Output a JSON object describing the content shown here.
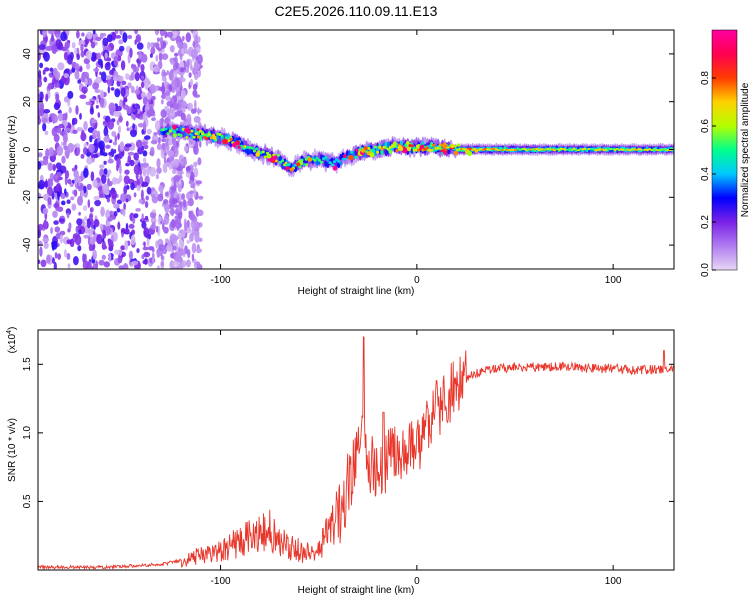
{
  "chart_data": [
    {
      "type": "heatmap",
      "title": "C2E5.2026.110.09.11.E13",
      "xlabel": "Height of straight line (km)",
      "ylabel": "Frequency (Hz)",
      "xlim": [
        -193,
        131
      ],
      "ylim": [
        -50,
        50
      ],
      "xticks": [
        -100,
        0,
        100
      ],
      "yticks": [
        -40,
        -20,
        0,
        20,
        40
      ],
      "colorbar": {
        "label": "Normalized spectral amplitude",
        "range": [
          0,
          1
        ],
        "ticks": [
          "0.0",
          "0.2",
          "0.4",
          "0.6",
          "0.8"
        ],
        "ticks_values": [
          0.0,
          0.2,
          0.4,
          0.6,
          0.8
        ],
        "colors": [
          "#e6d7f5",
          "#b07cf0",
          "#7a22e6",
          "#0000ff",
          "#00c8ff",
          "#00ff8c",
          "#b4ff00",
          "#ffd200",
          "#ff3c00",
          "#ff0050",
          "#ff00a0"
        ]
      },
      "ridge": [
        {
          "x": -130,
          "y": 8,
          "a": 0.45
        },
        {
          "x": -118,
          "y": 7,
          "a": 0.6
        },
        {
          "x": -108,
          "y": 6,
          "a": 0.75
        },
        {
          "x": -100,
          "y": 5,
          "a": 0.55
        },
        {
          "x": -92,
          "y": 3,
          "a": 0.5
        },
        {
          "x": -85,
          "y": 0,
          "a": 0.45
        },
        {
          "x": -78,
          "y": -2,
          "a": 0.55
        },
        {
          "x": -70,
          "y": -4,
          "a": 0.6
        },
        {
          "x": -64,
          "y": -8,
          "a": 0.5
        },
        {
          "x": -58,
          "y": -5,
          "a": 0.45
        },
        {
          "x": -50,
          "y": -4,
          "a": 0.5
        },
        {
          "x": -42,
          "y": -6,
          "a": 0.4
        },
        {
          "x": -35,
          "y": -3,
          "a": 0.45
        },
        {
          "x": -28,
          "y": -1,
          "a": 0.5
        },
        {
          "x": -20,
          "y": 0,
          "a": 0.6
        },
        {
          "x": -12,
          "y": 1,
          "a": 0.7
        },
        {
          "x": -5,
          "y": 1,
          "a": 0.8
        },
        {
          "x": 5,
          "y": 1,
          "a": 0.75
        },
        {
          "x": 20,
          "y": 0,
          "a": 0.7
        },
        {
          "x": 40,
          "y": 0,
          "a": 0.65
        },
        {
          "x": 60,
          "y": 0,
          "a": 0.62
        },
        {
          "x": 80,
          "y": 0,
          "a": 0.6
        },
        {
          "x": 100,
          "y": 0,
          "a": 0.6
        },
        {
          "x": 120,
          "y": 0,
          "a": 0.6
        },
        {
          "x": 131,
          "y": 0,
          "a": 0.6
        }
      ]
    },
    {
      "type": "line",
      "xlabel": "Height of straight line (km)",
      "ylabel": "SNR (10 * v/v)",
      "scale_label": "(x10",
      "scale_exp": "4",
      "scale_close": ")",
      "xlim": [
        -193,
        131
      ],
      "ylim": [
        0,
        1.75
      ],
      "xticks": [
        -100,
        0,
        100
      ],
      "yticks": [
        "0.5",
        "1.0",
        "1.5"
      ],
      "ytick_values": [
        0.5,
        1.0,
        1.5
      ],
      "series": [
        {
          "name": "SNR",
          "color": "#e8362b",
          "x": [
            -193,
            -160,
            -130,
            -120,
            -110,
            -100,
            -90,
            -80,
            -74,
            -68,
            -62,
            -56,
            -50,
            -44,
            -38,
            -34,
            -30,
            -28,
            -26,
            -22,
            -18,
            -14,
            -10,
            -6,
            -2,
            2,
            6,
            10,
            14,
            18,
            22,
            26,
            30,
            35,
            40,
            50,
            60,
            70,
            80,
            90,
            100,
            110,
            120,
            131
          ],
          "y": [
            0.02,
            0.02,
            0.04,
            0.07,
            0.1,
            0.13,
            0.22,
            0.26,
            0.3,
            0.2,
            0.15,
            0.12,
            0.15,
            0.3,
            0.45,
            0.65,
            0.85,
            1.1,
            0.8,
            0.75,
            0.7,
            0.85,
            0.9,
            0.85,
            0.9,
            0.95,
            1.1,
            1.2,
            1.2,
            1.3,
            1.35,
            1.4,
            1.43,
            1.45,
            1.47,
            1.48,
            1.48,
            1.48,
            1.48,
            1.47,
            1.47,
            1.46,
            1.46,
            1.47
          ],
          "spikes": [
            {
              "x": -27,
              "y": 1.7
            },
            {
              "x": -17,
              "y": 1.15
            },
            {
              "x": 10,
              "y": 1.38
            },
            {
              "x": 126,
              "y": 1.6
            }
          ]
        }
      ]
    }
  ]
}
